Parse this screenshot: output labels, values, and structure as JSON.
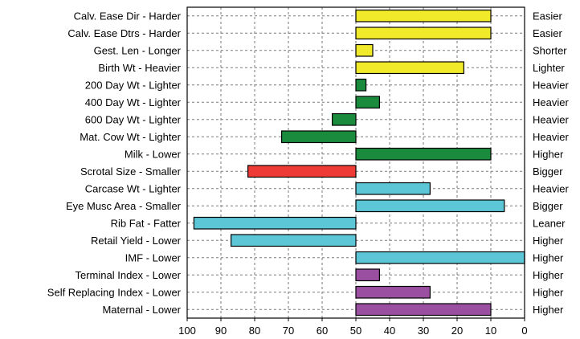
{
  "chart_data": {
    "type": "bar",
    "orientation": "horizontal",
    "x_reversed": true,
    "xlim": [
      100,
      0
    ],
    "xticks": [
      100,
      90,
      80,
      70,
      60,
      50,
      40,
      30,
      20,
      10,
      0
    ],
    "baseline": 50,
    "grid": true,
    "title": "",
    "xlabel": "",
    "ylabel": "",
    "categories": [
      "Calv. Ease Dir - Harder",
      "Calv. Ease Dtrs - Harder",
      "Gest. Len - Longer",
      "Birth Wt - Heavier",
      "200 Day Wt - Lighter",
      "400 Day Wt - Lighter",
      "600 Day Wt - Lighter",
      "Mat. Cow Wt - Lighter",
      "Milk - Lower",
      "Scrotal Size - Smaller",
      "Carcase Wt - Lighter",
      "Eye Musc Area - Smaller",
      "Rib Fat - Fatter",
      "Retail Yield - Lower",
      "IMF - Lower",
      "Terminal Index - Lower",
      "Self Replacing Index - Lower",
      "Maternal - Lower"
    ],
    "right_labels": [
      "Easier",
      "Easier",
      "Shorter",
      "Lighter",
      "Heavier",
      "Heavier",
      "Heavier",
      "Heavier",
      "Higher",
      "Bigger",
      "Heavier",
      "Bigger",
      "Leaner",
      "Higher",
      "Higher",
      "Higher",
      "Higher",
      "Higher"
    ],
    "values": [
      10,
      10,
      45,
      18,
      47,
      43,
      57,
      72,
      10,
      82,
      28,
      6,
      98,
      87,
      0,
      43,
      28,
      10
    ],
    "colors": [
      "#f0ea2a",
      "#f0ea2a",
      "#f0ea2a",
      "#f0ea2a",
      "#1a8a3c",
      "#1a8a3c",
      "#1a8a3c",
      "#1a8a3c",
      "#1a8a3c",
      "#ee3b36",
      "#5cc6d6",
      "#5cc6d6",
      "#5cc6d6",
      "#5cc6d6",
      "#5cc6d6",
      "#9a4fa0",
      "#9a4fa0",
      "#9a4fa0"
    ],
    "bar_outline": "#000000",
    "grid_color": "#7a7a7a"
  }
}
